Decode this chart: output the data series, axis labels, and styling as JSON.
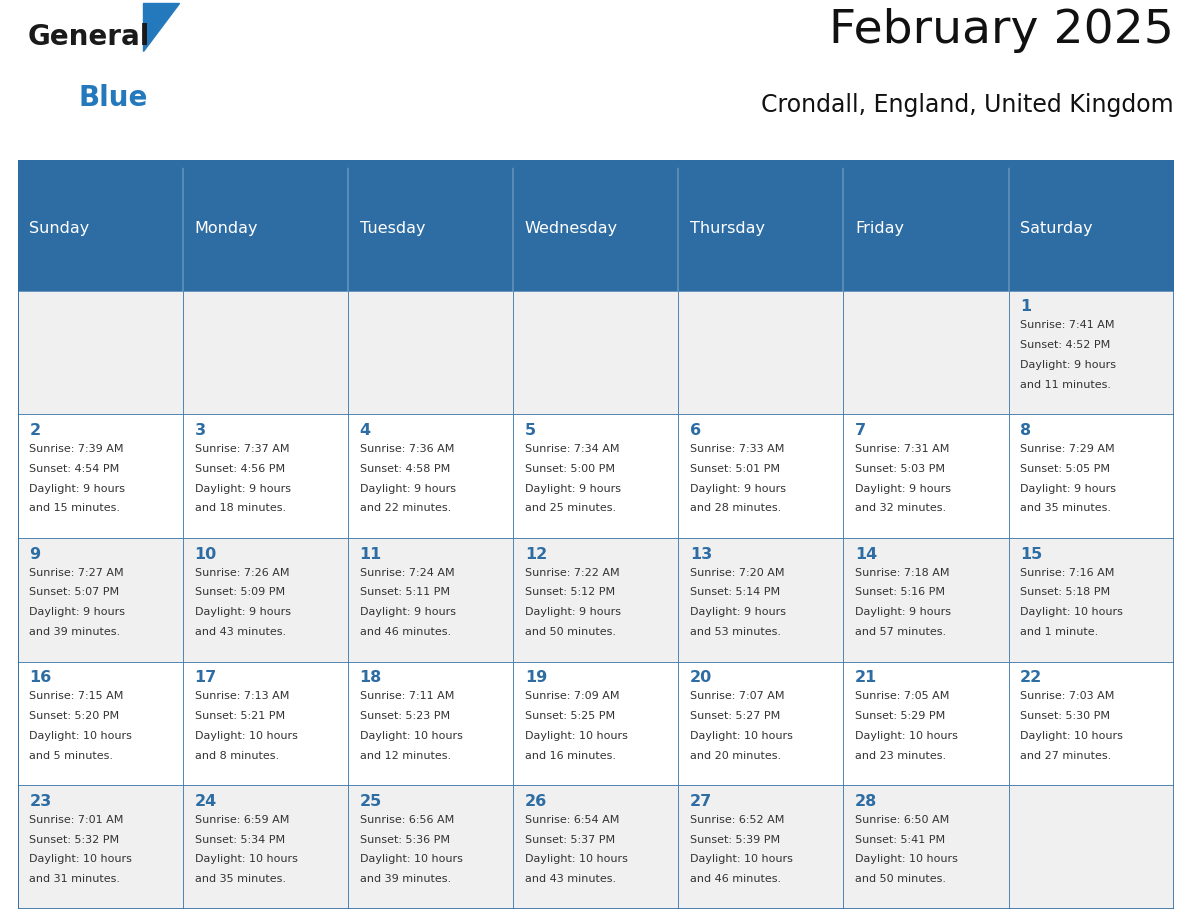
{
  "title": "February 2025",
  "subtitle": "Crondall, England, United Kingdom",
  "header_bg": "#2E6DA4",
  "header_text_color": "#FFFFFF",
  "weekdays": [
    "Sunday",
    "Monday",
    "Tuesday",
    "Wednesday",
    "Thursday",
    "Friday",
    "Saturday"
  ],
  "bg_color": "#FFFFFF",
  "cell_alt_bg": "#F0F0F0",
  "grid_color": "#2E6DA4",
  "day_number_color": "#2E6DA4",
  "info_text_color": "#333333",
  "logo_general_color": "#1A1A1A",
  "logo_blue_color": "#2479BD",
  "sep_line_color": "#2E6DA4",
  "calendar": [
    [
      null,
      null,
      null,
      null,
      null,
      null,
      {
        "day": 1,
        "sunrise": "7:41 AM",
        "sunset": "4:52 PM",
        "daylight": "9 hours and 11 minutes."
      }
    ],
    [
      {
        "day": 2,
        "sunrise": "7:39 AM",
        "sunset": "4:54 PM",
        "daylight": "9 hours and 15 minutes."
      },
      {
        "day": 3,
        "sunrise": "7:37 AM",
        "sunset": "4:56 PM",
        "daylight": "9 hours and 18 minutes."
      },
      {
        "day": 4,
        "sunrise": "7:36 AM",
        "sunset": "4:58 PM",
        "daylight": "9 hours and 22 minutes."
      },
      {
        "day": 5,
        "sunrise": "7:34 AM",
        "sunset": "5:00 PM",
        "daylight": "9 hours and 25 minutes."
      },
      {
        "day": 6,
        "sunrise": "7:33 AM",
        "sunset": "5:01 PM",
        "daylight": "9 hours and 28 minutes."
      },
      {
        "day": 7,
        "sunrise": "7:31 AM",
        "sunset": "5:03 PM",
        "daylight": "9 hours and 32 minutes."
      },
      {
        "day": 8,
        "sunrise": "7:29 AM",
        "sunset": "5:05 PM",
        "daylight": "9 hours and 35 minutes."
      }
    ],
    [
      {
        "day": 9,
        "sunrise": "7:27 AM",
        "sunset": "5:07 PM",
        "daylight": "9 hours and 39 minutes."
      },
      {
        "day": 10,
        "sunrise": "7:26 AM",
        "sunset": "5:09 PM",
        "daylight": "9 hours and 43 minutes."
      },
      {
        "day": 11,
        "sunrise": "7:24 AM",
        "sunset": "5:11 PM",
        "daylight": "9 hours and 46 minutes."
      },
      {
        "day": 12,
        "sunrise": "7:22 AM",
        "sunset": "5:12 PM",
        "daylight": "9 hours and 50 minutes."
      },
      {
        "day": 13,
        "sunrise": "7:20 AM",
        "sunset": "5:14 PM",
        "daylight": "9 hours and 53 minutes."
      },
      {
        "day": 14,
        "sunrise": "7:18 AM",
        "sunset": "5:16 PM",
        "daylight": "9 hours and 57 minutes."
      },
      {
        "day": 15,
        "sunrise": "7:16 AM",
        "sunset": "5:18 PM",
        "daylight": "10 hours and 1 minute."
      }
    ],
    [
      {
        "day": 16,
        "sunrise": "7:15 AM",
        "sunset": "5:20 PM",
        "daylight": "10 hours and 5 minutes."
      },
      {
        "day": 17,
        "sunrise": "7:13 AM",
        "sunset": "5:21 PM",
        "daylight": "10 hours and 8 minutes."
      },
      {
        "day": 18,
        "sunrise": "7:11 AM",
        "sunset": "5:23 PM",
        "daylight": "10 hours and 12 minutes."
      },
      {
        "day": 19,
        "sunrise": "7:09 AM",
        "sunset": "5:25 PM",
        "daylight": "10 hours and 16 minutes."
      },
      {
        "day": 20,
        "sunrise": "7:07 AM",
        "sunset": "5:27 PM",
        "daylight": "10 hours and 20 minutes."
      },
      {
        "day": 21,
        "sunrise": "7:05 AM",
        "sunset": "5:29 PM",
        "daylight": "10 hours and 23 minutes."
      },
      {
        "day": 22,
        "sunrise": "7:03 AM",
        "sunset": "5:30 PM",
        "daylight": "10 hours and 27 minutes."
      }
    ],
    [
      {
        "day": 23,
        "sunrise": "7:01 AM",
        "sunset": "5:32 PM",
        "daylight": "10 hours and 31 minutes."
      },
      {
        "day": 24,
        "sunrise": "6:59 AM",
        "sunset": "5:34 PM",
        "daylight": "10 hours and 35 minutes."
      },
      {
        "day": 25,
        "sunrise": "6:56 AM",
        "sunset": "5:36 PM",
        "daylight": "10 hours and 39 minutes."
      },
      {
        "day": 26,
        "sunrise": "6:54 AM",
        "sunset": "5:37 PM",
        "daylight": "10 hours and 43 minutes."
      },
      {
        "day": 27,
        "sunrise": "6:52 AM",
        "sunset": "5:39 PM",
        "daylight": "10 hours and 46 minutes."
      },
      {
        "day": 28,
        "sunrise": "6:50 AM",
        "sunset": "5:41 PM",
        "daylight": "10 hours and 50 minutes."
      },
      null
    ]
  ],
  "figsize": [
    11.88,
    9.18
  ],
  "dpi": 100
}
